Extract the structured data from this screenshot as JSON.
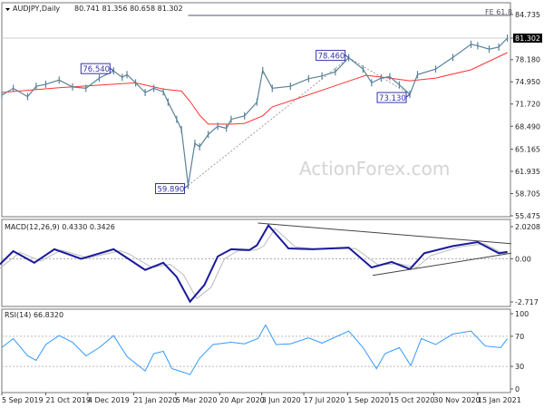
{
  "chart_data": [
    {
      "type": "line",
      "title": "AUDJPY,Daily",
      "ohlc": "80.741 81.356 80.658 81.302",
      "yticks": [
        "84.735",
        "81.302",
        "78.180",
        "74.950",
        "71.720",
        "68.490",
        "65.165",
        "61.935",
        "58.705",
        "55.475"
      ],
      "ylim": [
        55.475,
        84.735
      ],
      "current_price": "81.302",
      "current_price_value": 81.302,
      "price": [
        [
          "2019-09-05",
          73.0
        ],
        [
          "2019-09-17",
          74.0
        ],
        [
          "2019-10-02",
          72.8
        ],
        [
          "2019-10-11",
          74.3
        ],
        [
          "2019-10-21",
          74.6
        ],
        [
          "2019-11-04",
          75.2
        ],
        [
          "2019-11-18",
          74.2
        ],
        [
          "2019-12-02",
          74.0
        ],
        [
          "2019-12-16",
          75.5
        ],
        [
          "2019-12-31",
          76.54
        ],
        [
          "2020-01-09",
          75.6
        ],
        [
          "2020-01-14",
          76.0
        ],
        [
          "2020-01-23",
          74.8
        ],
        [
          "2020-02-02",
          73.4
        ],
        [
          "2020-02-11",
          74.0
        ],
        [
          "2020-02-21",
          73.5
        ],
        [
          "2020-02-26",
          72.0
        ],
        [
          "2020-03-06",
          69.5
        ],
        [
          "2020-03-11",
          68.0
        ],
        [
          "2020-03-18",
          59.89
        ],
        [
          "2020-03-25",
          66.0
        ],
        [
          "2020-03-30",
          65.5
        ],
        [
          "2020-04-08",
          67.3
        ],
        [
          "2020-04-18",
          68.5
        ],
        [
          "2020-04-27",
          68.2
        ],
        [
          "2020-05-02",
          69.5
        ],
        [
          "2020-05-16",
          70.0
        ],
        [
          "2020-05-29",
          72.0
        ],
        [
          "2020-06-04",
          76.6
        ],
        [
          "2020-06-14",
          74.0
        ],
        [
          "2020-07-03",
          74.3
        ],
        [
          "2020-07-22",
          75.4
        ],
        [
          "2020-08-05",
          75.8
        ],
        [
          "2020-08-19",
          76.4
        ],
        [
          "2020-09-02",
          78.46
        ],
        [
          "2020-09-17",
          76.8
        ],
        [
          "2020-09-26",
          74.8
        ],
        [
          "2020-10-06",
          75.5
        ],
        [
          "2020-10-15",
          75.7
        ],
        [
          "2020-10-25",
          74.5
        ],
        [
          "2020-11-05",
          73.13
        ],
        [
          "2020-11-13",
          76.0
        ],
        [
          "2020-12-02",
          76.8
        ],
        [
          "2020-12-20",
          78.5
        ],
        [
          "2021-01-08",
          80.4
        ],
        [
          "2021-01-15",
          80.2
        ],
        [
          "2021-01-27",
          79.7
        ],
        [
          "2021-02-06",
          80.0
        ],
        [
          "2021-02-15",
          81.302
        ]
      ],
      "moving_average": [
        [
          "2019-09-05",
          73.4
        ],
        [
          "2019-11-04",
          74.1
        ],
        [
          "2019-12-31",
          74.6
        ],
        [
          "2020-01-23",
          74.8
        ],
        [
          "2020-02-21",
          73.9
        ],
        [
          "2020-03-11",
          73.6
        ],
        [
          "2020-03-20",
          72.1
        ],
        [
          "2020-03-30",
          70.1
        ],
        [
          "2020-04-08",
          68.8
        ],
        [
          "2020-05-03",
          68.8
        ],
        [
          "2020-05-16",
          68.9
        ],
        [
          "2020-06-04",
          70.0
        ],
        [
          "2020-06-14",
          71.3
        ],
        [
          "2020-07-12",
          72.6
        ],
        [
          "2020-08-13",
          74.1
        ],
        [
          "2020-09-20",
          75.9
        ],
        [
          "2020-10-15",
          75.5
        ],
        [
          "2020-11-05",
          75.1
        ],
        [
          "2020-12-02",
          75.5
        ],
        [
          "2021-01-08",
          76.7
        ],
        [
          "2021-02-15",
          79.2
        ]
      ],
      "ma_color": "#ff3333",
      "price_color": "#5a8399",
      "annotations": [
        {
          "label": "76.540",
          "date": "2019-12-31",
          "value": 76.54
        },
        {
          "label": "59.890",
          "date": "2020-03-18",
          "value": 59.89
        },
        {
          "label": "78.460",
          "date": "2020-09-02",
          "value": 78.46
        },
        {
          "label": "73.130",
          "date": "2020-11-05",
          "value": 73.13
        }
      ],
      "fe_level": {
        "label": "FE 61.8",
        "value": 84.6,
        "from": "2020-03-18"
      },
      "watermark": "ActionForex.com"
    },
    {
      "type": "line",
      "title": "MACD(12,26,9) 0.4330 0.3426",
      "yticks": [
        "2.0208",
        "0.00",
        "-2.717"
      ],
      "ylim": [
        -2.717,
        2.0208
      ],
      "macd_color": "#1a1a9c",
      "signal_color": "#bbbbbb",
      "macd": [
        [
          "2019-09-03",
          -0.35
        ],
        [
          "2019-09-17",
          0.48
        ],
        [
          "2019-10-09",
          -0.25
        ],
        [
          "2019-10-30",
          0.6
        ],
        [
          "2019-11-27",
          0.0
        ],
        [
          "2019-12-31",
          0.6
        ],
        [
          "2020-01-09",
          0.25
        ],
        [
          "2020-02-02",
          -0.7
        ],
        [
          "2020-02-21",
          -0.25
        ],
        [
          "2020-03-06",
          -1.15
        ],
        [
          "2020-03-20",
          -2.7
        ],
        [
          "2020-04-04",
          -1.65
        ],
        [
          "2020-04-18",
          0.15
        ],
        [
          "2020-05-02",
          0.6
        ],
        [
          "2020-05-21",
          0.55
        ],
        [
          "2020-05-29",
          0.85
        ],
        [
          "2020-06-10",
          2.1
        ],
        [
          "2020-07-01",
          0.65
        ],
        [
          "2020-07-26",
          0.6
        ],
        [
          "2020-09-02",
          0.7
        ],
        [
          "2020-09-26",
          -0.55
        ],
        [
          "2020-10-17",
          -0.2
        ],
        [
          "2020-11-05",
          -0.65
        ],
        [
          "2020-11-20",
          0.35
        ],
        [
          "2020-12-20",
          0.8
        ],
        [
          "2021-01-15",
          1.05
        ],
        [
          "2021-02-06",
          0.35
        ],
        [
          "2021-02-15",
          0.43
        ]
      ],
      "signal": [
        [
          "2019-09-03",
          -0.6
        ],
        [
          "2019-09-24",
          0.4
        ],
        [
          "2019-10-16",
          -0.15
        ],
        [
          "2019-11-06",
          0.55
        ],
        [
          "2019-12-04",
          0.05
        ],
        [
          "2020-01-07",
          0.5
        ],
        [
          "2020-01-16",
          0.3
        ],
        [
          "2020-02-09",
          -0.55
        ],
        [
          "2020-02-28",
          -0.35
        ],
        [
          "2020-03-13",
          -1.0
        ],
        [
          "2020-03-27",
          -2.5
        ],
        [
          "2020-04-11",
          -1.8
        ],
        [
          "2020-04-25",
          0.0
        ],
        [
          "2020-05-09",
          0.5
        ],
        [
          "2020-05-28",
          0.55
        ],
        [
          "2020-06-05",
          0.8
        ],
        [
          "2020-06-17",
          1.9
        ],
        [
          "2020-07-08",
          0.75
        ],
        [
          "2020-08-02",
          0.6
        ],
        [
          "2020-09-09",
          0.65
        ],
        [
          "2020-10-03",
          -0.4
        ],
        [
          "2020-10-24",
          -0.3
        ],
        [
          "2020-11-12",
          -0.55
        ],
        [
          "2020-11-27",
          0.2
        ],
        [
          "2020-12-27",
          0.75
        ],
        [
          "2021-01-22",
          0.95
        ],
        [
          "2021-02-10",
          0.35
        ],
        [
          "2021-02-15",
          0.34
        ]
      ],
      "trendlines": [
        [
          [
            "2020-05-30",
            2.25
          ],
          [
            "2021-02-19",
            0.95
          ]
        ],
        [
          [
            "2020-09-27",
            -1.05
          ],
          [
            "2021-02-19",
            0.35
          ]
        ]
      ]
    },
    {
      "type": "line",
      "title": "RSI(14) 66.8320",
      "yticks": [
        "100",
        "70",
        "30",
        "0"
      ],
      "ylim": [
        0,
        100
      ],
      "levels": [
        70,
        30
      ],
      "color": "#3399ff",
      "rsi": [
        [
          "2019-09-05",
          55
        ],
        [
          "2019-09-17",
          67
        ],
        [
          "2019-10-02",
          44
        ],
        [
          "2019-10-11",
          38
        ],
        [
          "2019-10-21",
          59
        ],
        [
          "2019-11-04",
          71
        ],
        [
          "2019-11-18",
          62
        ],
        [
          "2019-12-02",
          44
        ],
        [
          "2019-12-16",
          55
        ],
        [
          "2019-12-31",
          71
        ],
        [
          "2020-01-14",
          43
        ],
        [
          "2020-02-02",
          24
        ],
        [
          "2020-02-11",
          47
        ],
        [
          "2020-02-21",
          50
        ],
        [
          "2020-03-01",
          27
        ],
        [
          "2020-03-11",
          23
        ],
        [
          "2020-03-20",
          19
        ],
        [
          "2020-03-30",
          41
        ],
        [
          "2020-04-13",
          59
        ],
        [
          "2020-05-02",
          62
        ],
        [
          "2020-05-16",
          60
        ],
        [
          "2020-05-30",
          67
        ],
        [
          "2020-06-07",
          85
        ],
        [
          "2020-06-18",
          59
        ],
        [
          "2020-07-03",
          60
        ],
        [
          "2020-07-22",
          68
        ],
        [
          "2020-08-05",
          61
        ],
        [
          "2020-09-02",
          77
        ],
        [
          "2020-09-17",
          55
        ],
        [
          "2020-10-01",
          27
        ],
        [
          "2020-10-10",
          47
        ],
        [
          "2020-10-25",
          55
        ],
        [
          "2020-11-06",
          31
        ],
        [
          "2020-11-17",
          67
        ],
        [
          "2020-12-02",
          59
        ],
        [
          "2020-12-20",
          73
        ],
        [
          "2021-01-08",
          77
        ],
        [
          "2021-01-23",
          57
        ],
        [
          "2021-02-08",
          55
        ],
        [
          "2021-02-15",
          67
        ]
      ]
    }
  ],
  "xticks": [
    "5 Sep 2019",
    "21 Oct 2019",
    "4 Dec 2019",
    "21 Jan 2020",
    "5 Mar 2020",
    "20 Apr 2020",
    "3 Jun 2020",
    "17 Jul 2020",
    "1 Sep 2020",
    "15 Oct 2020",
    "30 Nov 2020",
    "15 Jan 2021"
  ],
  "xtick_dates": [
    "2019-09-05",
    "2019-10-21",
    "2019-12-04",
    "2020-01-21",
    "2020-03-05",
    "2020-04-20",
    "2020-06-03",
    "2020-07-17",
    "2020-09-01",
    "2020-10-15",
    "2020-11-30",
    "2021-01-15"
  ]
}
